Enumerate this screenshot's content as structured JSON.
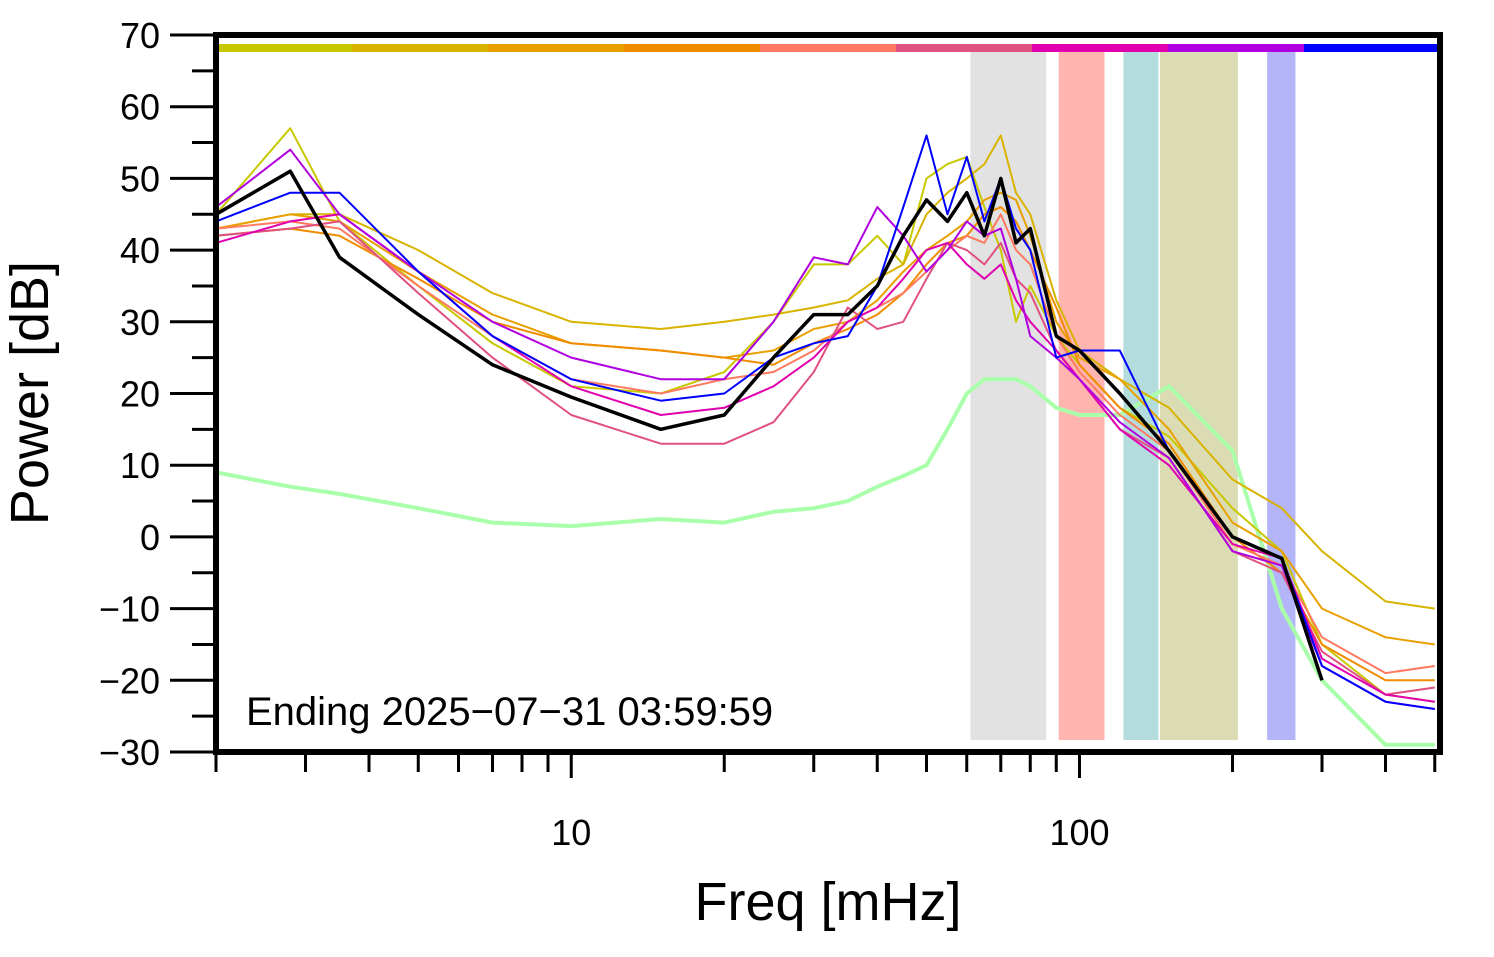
{
  "chart_data": {
    "type": "line",
    "ylabel": "Power [dB]",
    "xlabel": "Freq [mHz]",
    "annotation": "Ending 2025−07−31 03:59:59",
    "log_x": true,
    "xlim": [
      2,
      512
    ],
    "ylim": [
      -30,
      70
    ],
    "xticks": [
      10,
      100
    ],
    "xminorticks": [
      2,
      3,
      4,
      5,
      6,
      7,
      8,
      9,
      20,
      30,
      40,
      50,
      60,
      70,
      80,
      90,
      200,
      300,
      400,
      500
    ],
    "yticks": [
      {
        "value": -30,
        "label": "−30"
      },
      {
        "value": -20,
        "label": "−20"
      },
      {
        "value": -10,
        "label": "−10"
      },
      0,
      10,
      20,
      30,
      40,
      50,
      60,
      70
    ],
    "yminorticks": [
      -25,
      -15,
      -5,
      5,
      15,
      25,
      35,
      45,
      55,
      65
    ],
    "colorbar": [
      "#c8c800",
      "#d8b400",
      "#e8a000",
      "#f08c00",
      "#ff7a60",
      "#e05080",
      "#e000b0",
      "#b000e0",
      "#0000ff"
    ],
    "bands": [
      {
        "xrange": [
          61,
          86
        ],
        "color": "#e2e2e2"
      },
      {
        "xrange": [
          91,
          112
        ],
        "color": "#ffb4b0"
      },
      {
        "xrange": [
          122,
          143
        ],
        "color": "#b4dcdc"
      },
      {
        "xrange": [
          144,
          205
        ],
        "color": "#dcdcb4"
      },
      {
        "xrange": [
          234,
          266
        ],
        "color": "#b4b4f8"
      }
    ],
    "x": [
      2,
      2.8,
      3.5,
      5,
      7,
      10,
      15,
      20,
      25,
      30,
      35,
      40,
      45,
      50,
      55,
      60,
      65,
      70,
      75,
      80,
      90,
      100,
      120,
      150,
      200,
      250,
      300,
      400,
      500
    ],
    "series": [
      {
        "color": "#aaffaa",
        "linewidth": 4,
        "values": [
          9,
          7,
          6,
          4,
          2,
          1.5,
          2.5,
          2,
          3.5,
          4,
          5,
          7,
          8.5,
          10,
          15,
          20,
          22,
          22,
          22,
          21,
          18,
          17,
          17,
          21,
          12,
          -10,
          -20,
          -29,
          -29
        ]
      },
      {
        "color": "#c8c800",
        "linewidth": 2,
        "values": [
          45,
          57,
          44,
          35,
          27,
          21,
          20,
          23,
          30,
          38,
          38,
          42,
          38,
          50,
          52,
          53,
          46,
          40,
          30,
          35,
          28,
          24,
          18,
          14,
          4,
          -2,
          -15,
          -22,
          -23
        ]
      },
      {
        "color": "#d8b400",
        "linewidth": 2,
        "values": [
          43,
          45,
          45,
          40,
          34,
          30,
          29,
          30,
          31,
          32,
          33,
          36,
          38,
          45,
          48,
          50,
          52,
          56,
          48,
          45,
          33,
          26,
          22,
          18,
          8,
          4,
          -2,
          -9,
          -10
        ]
      },
      {
        "color": "#e8a000",
        "linewidth": 2,
        "values": [
          43,
          45,
          44,
          37,
          31,
          27,
          26,
          25,
          26,
          29,
          30,
          33,
          37,
          40,
          42,
          44,
          47,
          48,
          47,
          42,
          30,
          25,
          22,
          15,
          2,
          -2,
          -10,
          -14,
          -15
        ]
      },
      {
        "color": "#f08c00",
        "linewidth": 2,
        "values": [
          42,
          43,
          42,
          36,
          30,
          27,
          26,
          25,
          24,
          27,
          29,
          31,
          34,
          38,
          41,
          42,
          45,
          46,
          44,
          40,
          32,
          24,
          18,
          13,
          0,
          -5,
          -15,
          -20,
          -20
        ]
      },
      {
        "color": "#ff7a60",
        "linewidth": 2,
        "values": [
          43,
          44,
          43,
          35,
          28,
          22,
          20,
          22,
          23,
          26,
          30,
          32,
          34,
          37,
          40,
          42,
          41,
          45,
          40,
          38,
          28,
          23,
          17,
          12,
          -1,
          -4,
          -14,
          -19,
          -18
        ]
      },
      {
        "color": "#e05080",
        "linewidth": 2,
        "values": [
          42,
          43,
          44,
          34,
          25,
          17,
          13,
          13,
          16,
          23,
          32,
          29,
          30,
          36,
          41,
          40,
          38,
          41,
          36,
          34,
          26,
          22,
          15,
          11,
          -2,
          -5,
          -16,
          -22,
          -21
        ]
      },
      {
        "color": "#e000b0",
        "linewidth": 2,
        "values": [
          41,
          44,
          45,
          37,
          28,
          21,
          17,
          18,
          21,
          25,
          30,
          32,
          36,
          40,
          41,
          38,
          36,
          38,
          33,
          30,
          26,
          22,
          15,
          10,
          -1,
          -3,
          -17,
          -22,
          -23
        ]
      },
      {
        "color": "#b000e0",
        "linewidth": 2,
        "values": [
          46,
          54,
          45,
          37,
          30,
          25,
          22,
          22,
          30,
          39,
          38,
          46,
          42,
          37,
          40,
          44,
          42,
          43,
          36,
          28,
          25,
          22,
          16,
          11,
          -2,
          -4,
          -18,
          -23,
          -24
        ]
      },
      {
        "color": "#0000ff",
        "linewidth": 2,
        "values": [
          44,
          48,
          48,
          37,
          28,
          22,
          19,
          20,
          25,
          27,
          28,
          35,
          46,
          56,
          45,
          53,
          44,
          50,
          43,
          40,
          25,
          26,
          26,
          12,
          0,
          -3,
          -18,
          -23,
          -24
        ]
      },
      {
        "color": "#000000",
        "linewidth": 3.5,
        "values": [
          45,
          51,
          39,
          31,
          24,
          19.5,
          15,
          17,
          25,
          31,
          31,
          35,
          42,
          47,
          44,
          48,
          42,
          50,
          41,
          43,
          28,
          26,
          20,
          12,
          0,
          -3,
          -20,
          null,
          null
        ]
      }
    ]
  }
}
